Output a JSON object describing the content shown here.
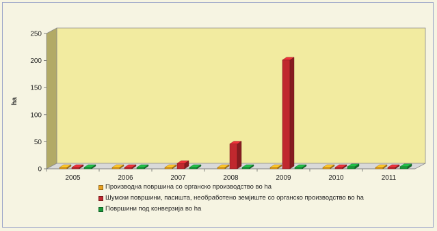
{
  "chart_data": {
    "type": "bar",
    "title": "",
    "xlabel": "",
    "ylabel": "ha",
    "ylim": [
      0,
      250
    ],
    "yticks": [
      0,
      50,
      100,
      150,
      200,
      250
    ],
    "categories": [
      "2005",
      "2006",
      "2007",
      "2008",
      "2009",
      "2010",
      "2011"
    ],
    "grid": false,
    "legend_position": "bottom",
    "series": [
      {
        "name": "Производна површина со органско производство во ha",
        "color": "#e8a020",
        "values": [
          0,
          0,
          0,
          0,
          0,
          0,
          0
        ]
      },
      {
        "name": "Шумски површини, пасишта, необработено земјиште со органско производство во ha",
        "color": "#c0282e",
        "values": [
          0.5,
          0.5,
          10,
          46,
          201,
          0,
          0
        ]
      },
      {
        "name": "Површини под конверзија во ha",
        "color": "#1a9a3a",
        "values": [
          0.5,
          0.5,
          0.5,
          0,
          0.5,
          4,
          4
        ]
      }
    ],
    "colors": {
      "wall": "#f2eba0",
      "left_wall": "#b2aa66",
      "floor": "#d9d9d9",
      "background": "#f6f4e2"
    }
  }
}
